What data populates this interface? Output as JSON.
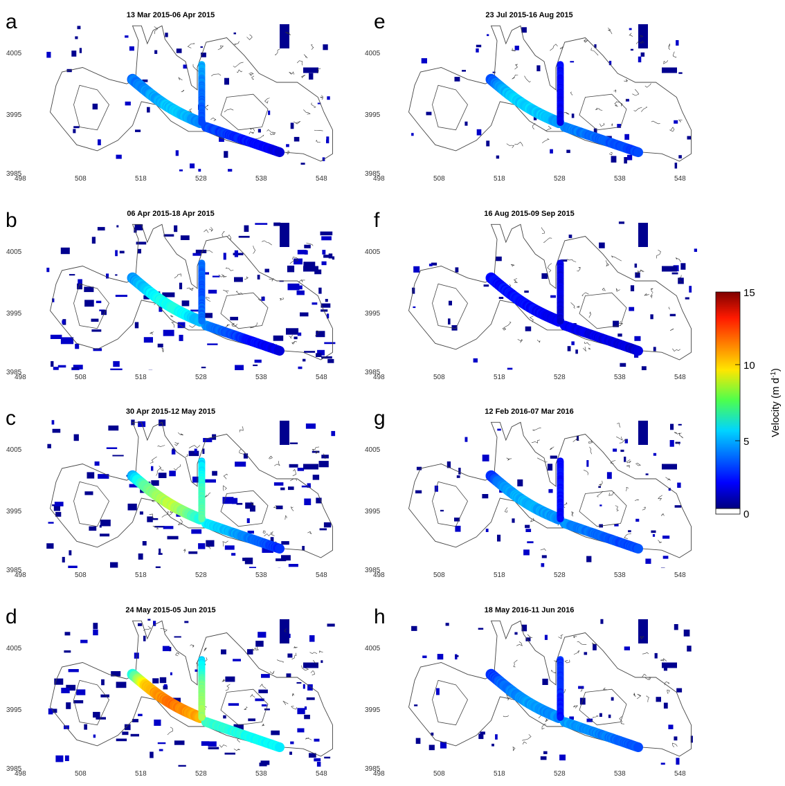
{
  "chart_data": {
    "type": "heatmap",
    "description_units": "Velocity (m d-1)",
    "colorbar": {
      "label": "Velocity (m d",
      "label_sup": "-1",
      "label_end": ")",
      "range": [
        0,
        15
      ],
      "ticks": [
        15,
        10,
        5,
        0
      ],
      "colormap": "jet",
      "zero_color": "#ffffff"
    },
    "x_ticks": [
      "498",
      "508",
      "518",
      "528",
      "538",
      "548"
    ],
    "y_ticks": [
      "4005",
      "3995",
      "3985"
    ],
    "xlim": [
      498,
      548
    ],
    "ylim": [
      3985,
      4010
    ],
    "panels": [
      {
        "letter": "a",
        "title": "13 Mar 2015-06 Apr 2015",
        "west_trunk_velocity": [
          3.5,
          4.0,
          4.5,
          4.8,
          4.5,
          3.8
        ],
        "east_trunk_velocity": [
          3.0,
          2.5,
          2.0,
          1.5
        ],
        "tributary_velocity": [
          4.5,
          3.5,
          3.0
        ],
        "noise": 0.35
      },
      {
        "letter": "b",
        "title": "06 Apr 2015-18 Apr 2015",
        "west_trunk_velocity": [
          4.0,
          5.0,
          5.8,
          6.0,
          5.5,
          4.5
        ],
        "east_trunk_velocity": [
          4.0,
          3.0,
          2.0,
          1.5
        ],
        "tributary_velocity": [
          3.5,
          3.0,
          3.5
        ],
        "noise": 0.85
      },
      {
        "letter": "c",
        "title": "30 Apr 2015-12 May 2015",
        "west_trunk_velocity": [
          4.5,
          7.0,
          8.0,
          8.5,
          7.5,
          6.0
        ],
        "east_trunk_velocity": [
          5.5,
          4.5,
          3.5,
          2.5
        ],
        "tributary_velocity": [
          5.0,
          6.5,
          7.0
        ],
        "noise": 0.75
      },
      {
        "letter": "d",
        "title": "24 May 2015-05 Jun 2015",
        "west_trunk_velocity": [
          6.0,
          10.0,
          11.0,
          11.5,
          11.0,
          10.5
        ],
        "east_trunk_velocity": [
          6.5,
          5.5
        ],
        "tributary_velocity": [
          5.0,
          7.5,
          8.0
        ],
        "noise": 0.7
      },
      {
        "letter": "e",
        "title": "23 Jul 2015-16 Aug 2015",
        "west_trunk_velocity": [
          3.0,
          4.5,
          5.0,
          5.0,
          4.8,
          4.2
        ],
        "east_trunk_velocity": [
          4.0,
          3.5,
          3.0,
          2.8
        ],
        "tributary_velocity": [
          2.0,
          1.8,
          1.5
        ],
        "noise": 0.3
      },
      {
        "letter": "f",
        "title": "16 Aug 2015-09 Sep 2015",
        "west_trunk_velocity": [
          2.0,
          2.0,
          2.2,
          2.0,
          1.8,
          1.8
        ],
        "east_trunk_velocity": [
          1.8,
          1.5,
          1.5,
          1.2
        ],
        "tributary_velocity": [
          1.5,
          1.5,
          1.2
        ],
        "noise": 0.35
      },
      {
        "letter": "g",
        "title": "12 Feb 2016-07 Mar 2016",
        "west_trunk_velocity": [
          2.5,
          4.0,
          4.5,
          4.5,
          4.2,
          4.0
        ],
        "east_trunk_velocity": [
          4.0,
          3.5,
          3.0,
          3.0
        ],
        "tributary_velocity": [
          2.0,
          2.0,
          1.8
        ],
        "noise": 0.4
      },
      {
        "letter": "h",
        "title": "18 May 2016-11 Jun 2016",
        "west_trunk_velocity": [
          2.5,
          3.5,
          4.0,
          4.2,
          4.0,
          4.0
        ],
        "east_trunk_velocity": [
          4.2,
          4.0,
          3.5,
          3.0
        ],
        "tributary_velocity": [
          2.5,
          2.5,
          2.0
        ],
        "noise": 0.35
      }
    ]
  }
}
